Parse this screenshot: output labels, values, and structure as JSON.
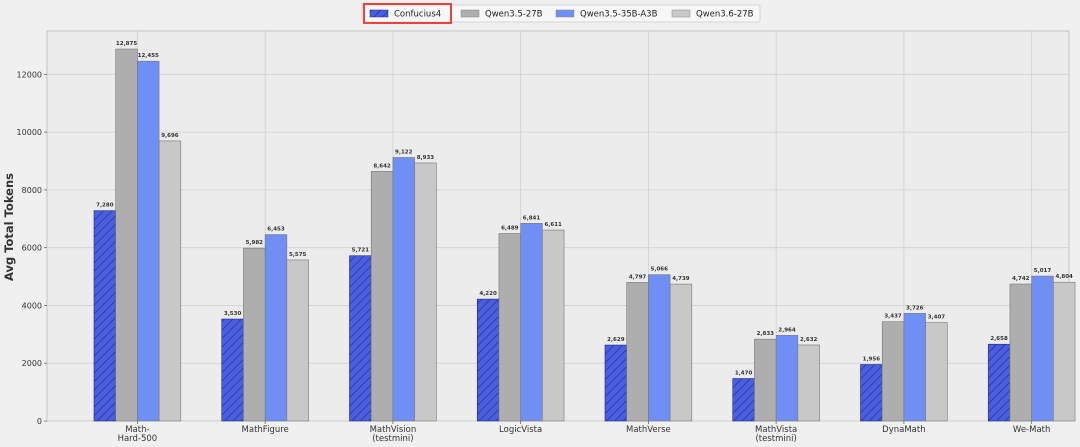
{
  "chart_data": {
    "type": "bar",
    "ylabel": "Avg Total Tokens",
    "xlabel": "",
    "title": "",
    "ylim": [
      0,
      13500
    ],
    "yticks": [
      0,
      2000,
      4000,
      6000,
      8000,
      10000,
      12000
    ],
    "grid": true,
    "legend_position": "top-center",
    "highlighted_series": "Confucius4",
    "categories": [
      [
        "Math-",
        "Hard-500"
      ],
      [
        "MathFigure"
      ],
      [
        "MathVision",
        "(testmini)"
      ],
      [
        "LogicVista"
      ],
      [
        "MathVerse"
      ],
      [
        "MathVista",
        "(testmini)"
      ],
      [
        "DynaMath"
      ],
      [
        "We-Math"
      ]
    ],
    "series": [
      {
        "name": "Confucius4",
        "color": "#4a5ee0",
        "hatch": true,
        "values": [
          7280,
          3530,
          5721,
          4220,
          2629,
          1470,
          1956,
          2658
        ],
        "labels": [
          "7,280",
          "3,530",
          "5,721",
          "4,220",
          "2,629",
          "1,470",
          "1,956",
          "2,658"
        ]
      },
      {
        "name": "Qwen3.5-27B",
        "color": "#aeaeae",
        "hatch": false,
        "values": [
          12875,
          5982,
          8642,
          6489,
          4797,
          2833,
          3437,
          4742
        ],
        "labels": [
          "12,875",
          "5,982",
          "8,642",
          "6,489",
          "4,797",
          "2,833",
          "3,437",
          "4,742"
        ]
      },
      {
        "name": "Qwen3.5-35B-A3B",
        "color": "#6f8ff5",
        "hatch": false,
        "values": [
          12455,
          6453,
          9122,
          6841,
          5066,
          2964,
          3726,
          5017
        ],
        "labels": [
          "12,455",
          "6,453",
          "9,122",
          "6,841",
          "5,066",
          "2,964",
          "3,726",
          "5,017"
        ]
      },
      {
        "name": "Qwen3.6-27B",
        "color": "#c8c8c8",
        "hatch": false,
        "values": [
          9696,
          5575,
          8933,
          6611,
          4739,
          2632,
          3407,
          4804
        ],
        "labels": [
          "9,696",
          "5,575",
          "8,933",
          "6,611",
          "4,739",
          "2,632",
          "3,407",
          "4,804"
        ]
      }
    ],
    "highlight_color": "#e8433f"
  }
}
